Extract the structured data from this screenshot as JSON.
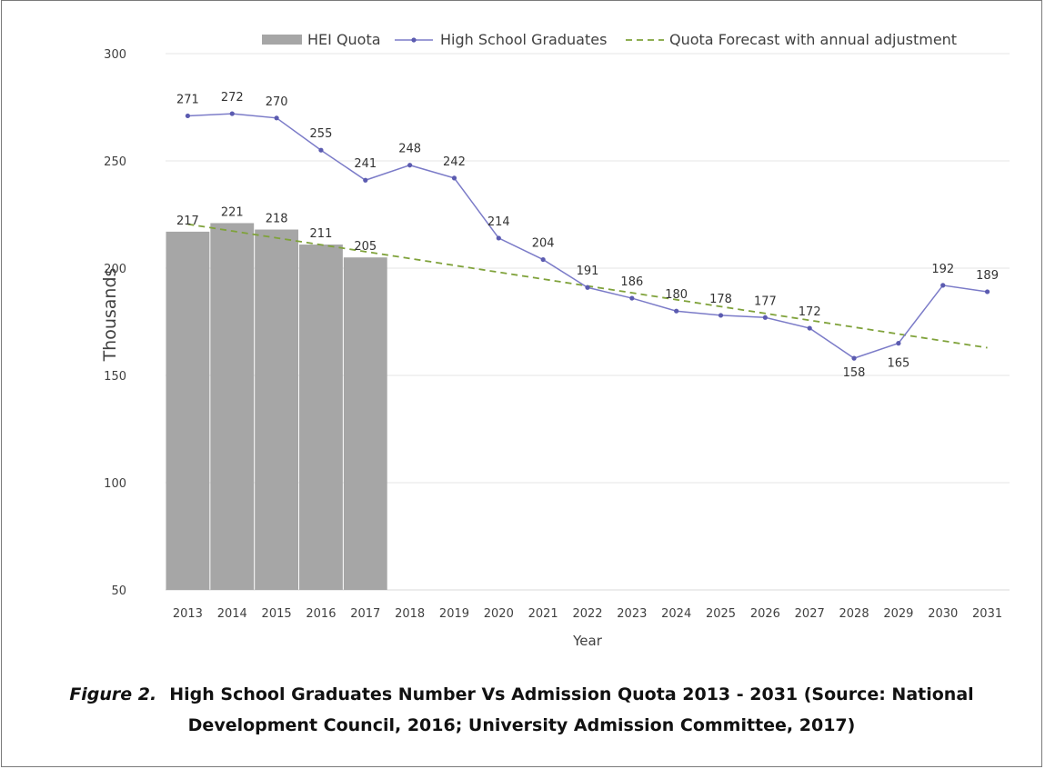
{
  "chart_data": {
    "type": "bar",
    "categories": [
      "2013",
      "2014",
      "2015",
      "2016",
      "2017",
      "2018",
      "2019",
      "2020",
      "2021",
      "2022",
      "2023",
      "2024",
      "2025",
      "2026",
      "2027",
      "2028",
      "2029",
      "2030",
      "2031"
    ],
    "xlabel": "Year",
    "ylabel": "Thousands",
    "ylim": [
      50,
      300
    ],
    "yticks": [
      50,
      100,
      150,
      200,
      250,
      300
    ],
    "grid": true,
    "legend_position": "top-right",
    "series": [
      {
        "name": "HEI Quota",
        "type": "bar",
        "color": "#a6a6a6",
        "values": [
          217,
          221,
          218,
          211,
          205,
          null,
          null,
          null,
          null,
          null,
          null,
          null,
          null,
          null,
          null,
          null,
          null,
          null,
          null
        ]
      },
      {
        "name": "High School Graduates",
        "type": "line",
        "color": "#7b7bc8",
        "marker": "dot",
        "values": [
          271,
          272,
          270,
          255,
          241,
          248,
          242,
          214,
          204,
          191,
          186,
          180,
          178,
          177,
          172,
          158,
          165,
          192,
          189
        ]
      },
      {
        "name": "Quota Forecast with annual adjustment",
        "type": "line",
        "style": "dashed",
        "color": "#7fa23a",
        "values": [
          220.5,
          217.3,
          214.1,
          210.9,
          207.7,
          204.5,
          201.3,
          198.1,
          194.9,
          191.7,
          188.5,
          185.3,
          182.1,
          178.9,
          175.7,
          172.5,
          169.3,
          166.1,
          162.9
        ]
      }
    ]
  },
  "caption": {
    "label": "Figure 2.",
    "text": "High School Graduates Number Vs Admission Quota 2013 - 2031 (Source: National Development Council, 2016; University Admission Committee, 2017)"
  }
}
